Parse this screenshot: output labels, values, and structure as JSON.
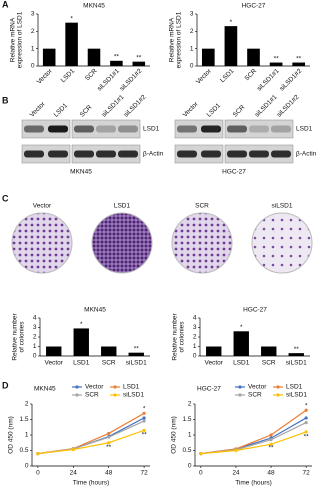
{
  "figure": {
    "panel_labels": [
      "A",
      "B",
      "C",
      "D"
    ],
    "blot": {
      "lanes": [
        "Vector",
        "LSD1",
        "SCR",
        "siLSD1#1",
        "siLSD1#2"
      ],
      "proteins": [
        "LSD1",
        "β-Actin"
      ],
      "cell_lines": [
        "MKN45",
        "HGC-27"
      ]
    },
    "colonies": [
      "Vector",
      "LSD1",
      "SCR",
      "siLSD1"
    ]
  },
  "chart_data": [
    {
      "type": "bar",
      "title": "MKN45",
      "y_label": [
        "Relative mRNA",
        "expression of LSD1"
      ],
      "categories": [
        "Vector",
        "LSD1",
        "SCR",
        "siLSD1#1",
        "siLSD1#2"
      ],
      "values": [
        1,
        2.5,
        1,
        0.3,
        0.25
      ],
      "annotations": [
        null,
        "*",
        null,
        "**",
        "**"
      ],
      "color": "#000000",
      "ylim": [
        0,
        3
      ],
      "yticks": [
        0,
        1,
        2,
        3
      ]
    },
    {
      "type": "bar",
      "title": "HGC-27",
      "y_label": [
        "Relative mRNA",
        "expression of LSD1"
      ],
      "categories": [
        "Vector",
        "LSD1",
        "SCR",
        "siLSD1#1",
        "siLSD1#2"
      ],
      "values": [
        1,
        2.3,
        1,
        0.2,
        0.2
      ],
      "annotations": [
        null,
        "*",
        null,
        "**",
        "**"
      ],
      "color": "#000000",
      "ylim": [
        0,
        3
      ],
      "yticks": [
        0,
        1,
        2,
        3
      ]
    },
    {
      "type": "bar",
      "title": "MKN45",
      "y_label": [
        "Relative number",
        "of colonies"
      ],
      "categories": [
        "Vector",
        "LSD1",
        "SCR",
        "siLSD1"
      ],
      "values": [
        1,
        2.9,
        1,
        0.35
      ],
      "annotations": [
        null,
        "*",
        null,
        "**"
      ],
      "color": "#000000",
      "ylim": [
        0,
        4
      ],
      "yticks": [
        0,
        1,
        2,
        3,
        4
      ]
    },
    {
      "type": "bar",
      "title": "HGC-27",
      "y_label": [
        "Relative number",
        "of colonies"
      ],
      "categories": [
        "Vector",
        "LSD1",
        "SCR",
        "siLSD1"
      ],
      "values": [
        1,
        2.6,
        1,
        0.3
      ],
      "annotations": [
        null,
        "*",
        null,
        "**"
      ],
      "color": "#000000",
      "ylim": [
        0,
        4
      ],
      "yticks": [
        0,
        1,
        2,
        3,
        4
      ]
    },
    {
      "type": "line",
      "title": "MKN45",
      "x_label": "Time (hours)",
      "y_label": "OD 450 (nm)",
      "legend": "top",
      "x": [
        0,
        24,
        48,
        72
      ],
      "xlim": [
        -4,
        76
      ],
      "xticks": [
        0,
        24,
        48,
        72
      ],
      "ylim": [
        0,
        2
      ],
      "yticks": [
        0,
        0.5,
        1,
        1.5,
        2
      ],
      "series": [
        {
          "name": "Vector",
          "color": "#4472c4",
          "values": [
            0.4,
            0.55,
            0.95,
            1.55
          ]
        },
        {
          "name": "LSD1",
          "color": "#ed7d31",
          "values": [
            0.4,
            0.56,
            1.05,
            1.7
          ]
        },
        {
          "name": "SCR",
          "color": "#a5a5a5",
          "values": [
            0.4,
            0.55,
            0.93,
            1.45
          ]
        },
        {
          "name": "siLSD1",
          "color": "#ffc000",
          "values": [
            0.4,
            0.53,
            0.75,
            1.15
          ]
        }
      ],
      "annotations": [
        {
          "x": 72,
          "y": 1.85,
          "text": "*"
        },
        {
          "x": 72,
          "y": 1.0,
          "text": "**"
        },
        {
          "x": 48,
          "y": 0.6,
          "text": "**"
        }
      ]
    },
    {
      "type": "line",
      "title": "HGC-27",
      "x_label": "Time (hours)",
      "y_label": "OD 450 (nm)",
      "legend": "top",
      "x": [
        0,
        24,
        48,
        72
      ],
      "xlim": [
        -4,
        76
      ],
      "xticks": [
        0,
        24,
        48,
        72
      ],
      "ylim": [
        0,
        2
      ],
      "yticks": [
        0,
        0.5,
        1,
        1.5,
        2
      ],
      "series": [
        {
          "name": "Vector",
          "color": "#4472c4",
          "values": [
            0.4,
            0.55,
            0.9,
            1.55
          ]
        },
        {
          "name": "LSD1",
          "color": "#ed7d31",
          "values": [
            0.4,
            0.55,
            1.0,
            1.8
          ]
        },
        {
          "name": "SCR",
          "color": "#a5a5a5",
          "values": [
            0.4,
            0.52,
            0.85,
            1.4
          ]
        },
        {
          "name": "siLSD1",
          "color": "#ffc000",
          "values": [
            0.4,
            0.5,
            0.7,
            1.1
          ]
        }
      ],
      "annotations": [
        {
          "x": 72,
          "y": 1.95,
          "text": "*"
        },
        {
          "x": 72,
          "y": 0.95,
          "text": "**"
        },
        {
          "x": 48,
          "y": 0.58,
          "text": "**"
        }
      ]
    }
  ]
}
